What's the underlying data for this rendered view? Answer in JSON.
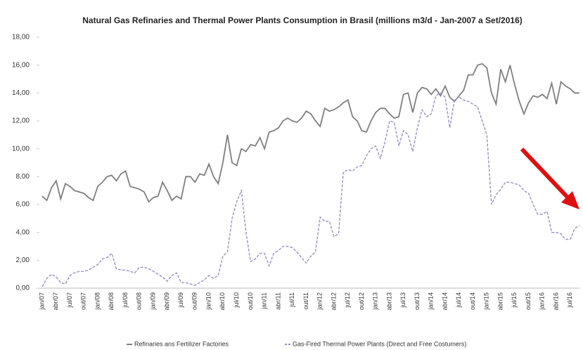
{
  "chart_data": {
    "type": "line",
    "title": "Natural Gas Refinaries and  Thermal Power Plants Consumption in Brasil (millions m3/d - Jan-2007 a Set/2016)",
    "categories": [
      "jan/07",
      null,
      null,
      "abr/07",
      null,
      null,
      "jul/07",
      null,
      null,
      "out/07",
      null,
      null,
      "jan/08",
      null,
      null,
      "abr/08",
      null,
      null,
      "jul/08",
      null,
      null,
      "out/08",
      null,
      null,
      "jan/09",
      null,
      null,
      "abr/09",
      null,
      null,
      "jul/09",
      null,
      null,
      "out/09",
      null,
      null,
      "jan/10",
      null,
      null,
      "abr/10",
      null,
      null,
      "jul/10",
      null,
      null,
      "out/10",
      null,
      null,
      "jan/11",
      null,
      null,
      "abr/11",
      null,
      null,
      "jul/11",
      null,
      null,
      "out/11",
      null,
      null,
      "jan/12",
      null,
      null,
      "abr/12",
      null,
      null,
      "jul/12",
      null,
      null,
      "out/12",
      null,
      null,
      "jan/13",
      null,
      null,
      "abr/13",
      null,
      null,
      "jul/13",
      null,
      null,
      "out/13",
      null,
      null,
      "jan/14",
      null,
      null,
      "abr/14",
      null,
      null,
      "jul/14",
      null,
      null,
      "out/14",
      null,
      null,
      "jan/15",
      null,
      null,
      "abr/15",
      null,
      null,
      "jul/15",
      null,
      null,
      "out/15",
      null,
      null,
      "jan/16",
      null,
      null,
      "abr/16",
      null,
      null,
      "jul/16",
      null,
      null
    ],
    "series": [
      {
        "name": "Refinaries ans Fertilizer Factories",
        "color": "#7f7f7f",
        "style": "solid",
        "values": [
          6.6,
          6.3,
          7.2,
          7.7,
          6.4,
          7.5,
          7.3,
          7.0,
          6.9,
          6.8,
          6.5,
          6.3,
          7.3,
          7.6,
          8.0,
          8.1,
          7.7,
          8.2,
          8.4,
          7.3,
          7.2,
          7.1,
          6.9,
          6.2,
          6.5,
          6.6,
          7.6,
          7.0,
          6.3,
          6.6,
          6.4,
          8.0,
          8.0,
          7.6,
          8.2,
          8.1,
          8.9,
          8.0,
          7.5,
          9.0,
          11.0,
          9.0,
          8.8,
          10.0,
          9.8,
          10.3,
          10.2,
          10.8,
          10.0,
          11.2,
          11.3,
          11.5,
          12.0,
          12.2,
          12.0,
          11.9,
          12.2,
          12.7,
          12.5,
          12.0,
          11.6,
          12.9,
          12.7,
          12.8,
          13.0,
          13.3,
          13.5,
          12.3,
          12.0,
          11.3,
          11.2,
          12.0,
          12.6,
          12.9,
          12.9,
          12.5,
          12.2,
          12.3,
          13.9,
          14.0,
          12.6,
          14.0,
          14.4,
          14.3,
          13.9,
          14.3,
          13.8,
          14.5,
          13.7,
          13.4,
          13.8,
          14.2,
          15.3,
          15.3,
          16.0,
          16.1,
          15.8,
          14.0,
          13.2,
          15.7,
          14.8,
          16.0,
          14.6,
          13.4,
          12.5,
          13.3,
          13.8,
          13.7,
          13.9,
          13.6,
          14.7,
          13.2,
          14.8,
          14.5,
          14.3,
          14.0,
          14.0
        ]
      },
      {
        "name": "Gas-Fired Thermal Power Plants (Direct and Free Costumers)",
        "color": "#9a8fc4",
        "style": "dashed",
        "values": [
          0.1,
          0.7,
          1.0,
          0.8,
          0.4,
          0.3,
          0.9,
          1.1,
          1.2,
          1.2,
          1.3,
          1.5,
          1.7,
          2.1,
          2.2,
          2.5,
          1.4,
          1.3,
          1.3,
          1.2,
          1.1,
          1.5,
          1.5,
          1.4,
          1.2,
          1.0,
          0.8,
          0.5,
          0.9,
          1.1,
          0.4,
          0.4,
          0.3,
          0.2,
          0.4,
          0.6,
          0.9,
          0.7,
          0.9,
          2.3,
          2.6,
          5.0,
          6.2,
          7.0,
          4.0,
          1.9,
          2.1,
          2.5,
          2.5,
          1.6,
          2.5,
          2.7,
          3.0,
          3.0,
          2.9,
          2.6,
          2.2,
          1.8,
          2.3,
          2.6,
          5.1,
          4.8,
          4.8,
          3.7,
          3.9,
          8.3,
          8.5,
          8.4,
          8.7,
          8.8,
          9.5,
          10.0,
          10.2,
          9.3,
          10.5,
          12.0,
          11.9,
          10.2,
          11.3,
          11.0,
          9.8,
          11.5,
          12.8,
          12.3,
          12.5,
          13.8,
          14.0,
          13.7,
          11.5,
          13.5,
          13.7,
          13.5,
          13.4,
          13.2,
          13.0,
          12.0,
          11.0,
          6.0,
          6.7,
          7.1,
          7.6,
          7.6,
          7.5,
          7.4,
          7.0,
          6.8,
          6.0,
          5.3,
          5.3,
          5.5,
          4.0,
          4.0,
          3.9,
          3.5,
          3.5,
          4.3,
          4.5
        ]
      }
    ],
    "ylim": [
      0,
      18
    ],
    "yticks": [
      {
        "value": 0,
        "label": "0,00"
      },
      {
        "value": 2,
        "label": "2,00"
      },
      {
        "value": 4,
        "label": "4,00"
      },
      {
        "value": 6,
        "label": "6,00"
      },
      {
        "value": 8,
        "label": "8,00"
      },
      {
        "value": 10,
        "label": "10,00"
      },
      {
        "value": 12,
        "label": "12,00"
      },
      {
        "value": 14,
        "label": "14,00"
      },
      {
        "value": 16,
        "label": "16,00"
      },
      {
        "value": 18,
        "label": "18,00"
      }
    ],
    "grid": false
  }
}
